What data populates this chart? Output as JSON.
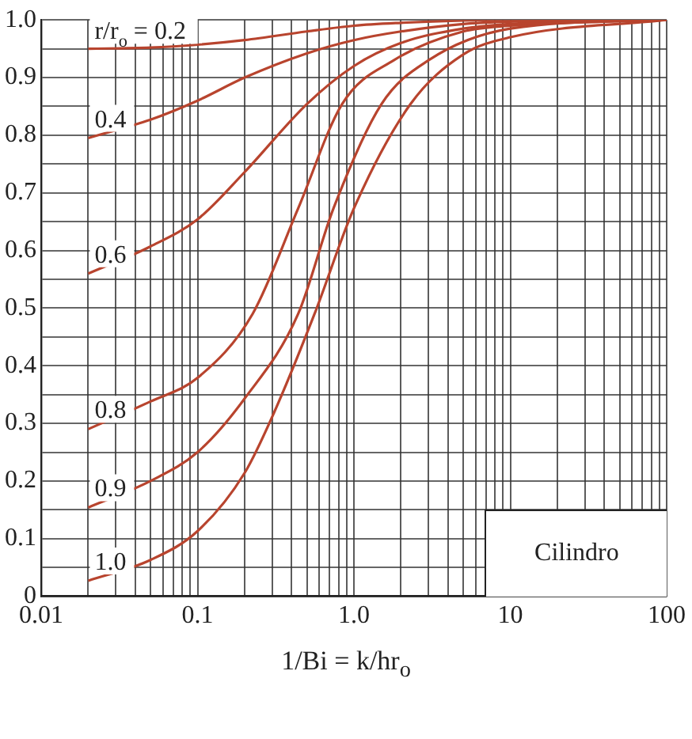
{
  "chart_data": {
    "type": "line",
    "xlabel": "1/Bi = k/hr$_{o}$",
    "log": "x",
    "grid": true,
    "legend": false,
    "xlim": [
      0.01,
      100
    ],
    "ylim": [
      0,
      1.0
    ],
    "xticks": [
      {
        "value": 0.01,
        "label": "0.01"
      },
      {
        "value": 0.02,
        "label": null
      },
      {
        "value": 0.03,
        "label": null
      },
      {
        "value": 0.04,
        "label": null
      },
      {
        "value": 0.05,
        "label": null
      },
      {
        "value": 0.06,
        "label": null
      },
      {
        "value": 0.07,
        "label": null
      },
      {
        "value": 0.08,
        "label": null
      },
      {
        "value": 0.09,
        "label": null
      },
      {
        "value": 0.1,
        "label": "0.1"
      },
      {
        "value": 0.2,
        "label": null
      },
      {
        "value": 0.3,
        "label": null
      },
      {
        "value": 0.4,
        "label": null
      },
      {
        "value": 0.5,
        "label": null
      },
      {
        "value": 0.6,
        "label": null
      },
      {
        "value": 0.7,
        "label": null
      },
      {
        "value": 0.8,
        "label": null
      },
      {
        "value": 0.9,
        "label": null
      },
      {
        "value": 1,
        "label": "1.0"
      },
      {
        "value": 2,
        "label": null
      },
      {
        "value": 3,
        "label": null
      },
      {
        "value": 4,
        "label": null
      },
      {
        "value": 5,
        "label": null
      },
      {
        "value": 6,
        "label": null
      },
      {
        "value": 7,
        "label": null
      },
      {
        "value": 8,
        "label": null
      },
      {
        "value": 9,
        "label": null
      },
      10,
      {
        "value": 20,
        "label": null
      },
      {
        "value": 30,
        "label": null
      },
      {
        "value": 40,
        "label": null
      },
      {
        "value": 50,
        "label": null
      },
      {
        "value": 60,
        "label": null
      },
      {
        "value": 70,
        "label": null
      },
      {
        "value": 80,
        "label": null
      },
      {
        "value": 90,
        "label": null
      },
      100
    ],
    "yticks": [
      0,
      {
        "value": 0.05,
        "label": null
      },
      0.1,
      {
        "value": 0.15,
        "label": null
      },
      0.2,
      {
        "value": 0.25,
        "label": null
      },
      0.3,
      {
        "value": 0.35,
        "label": null
      },
      0.4,
      {
        "value": 0.45,
        "label": null
      },
      0.5,
      {
        "value": 0.55,
        "label": null
      },
      0.6,
      {
        "value": 0.65,
        "label": null
      },
      0.7,
      {
        "value": 0.75,
        "label": null
      },
      0.8,
      {
        "value": 0.85,
        "label": null
      },
      0.9,
      {
        "value": 0.95,
        "label": null
      },
      {
        "value": 1.0,
        "label": "1.0"
      }
    ],
    "annotations": [
      "Cilindro"
    ],
    "series": [
      {
        "name": "r/r$_{o}$ = 0.2",
        "color": "#b8442e",
        "x": [
          0.02,
          0.05,
          0.1,
          0.2,
          0.5,
          1,
          2,
          5,
          10,
          100
        ],
        "values": [
          0.95,
          0.952,
          0.957,
          0.965,
          0.98,
          0.99,
          0.995,
          0.999,
          1.0,
          1.0
        ]
      },
      {
        "name": "0.4",
        "color": "#b8442e",
        "x": [
          0.02,
          0.05,
          0.1,
          0.2,
          0.5,
          1,
          2,
          5,
          10,
          100
        ],
        "values": [
          0.795,
          0.827,
          0.86,
          0.9,
          0.942,
          0.965,
          0.98,
          0.993,
          0.997,
          1.0
        ]
      },
      {
        "name": "0.6",
        "color": "#b8442e",
        "x": [
          0.02,
          0.05,
          0.1,
          0.2,
          0.5,
          1,
          2,
          5,
          10,
          100
        ],
        "values": [
          0.56,
          0.607,
          0.654,
          0.736,
          0.854,
          0.92,
          0.96,
          0.985,
          0.993,
          1.0
        ]
      },
      {
        "name": "0.8",
        "color": "#b8442e",
        "x": [
          0.02,
          0.05,
          0.1,
          0.225,
          0.44,
          0.84,
          1.8,
          5,
          10,
          100
        ],
        "values": [
          0.29,
          0.338,
          0.379,
          0.49,
          0.673,
          0.854,
          0.93,
          0.98,
          0.99,
          1.0
        ]
      },
      {
        "name": "0.9",
        "color": "#b8442e",
        "x": [
          0.02,
          0.05,
          0.1,
          0.2,
          0.44,
          0.74,
          1.5,
          3,
          10,
          100
        ],
        "values": [
          0.154,
          0.2,
          0.25,
          0.343,
          0.49,
          0.673,
          0.854,
          0.93,
          0.985,
          1.0
        ]
      },
      {
        "name": "1.0",
        "color": "#b8442e",
        "x": [
          0.02,
          0.05,
          0.1,
          0.2,
          0.31,
          0.56,
          1.0,
          2.3,
          5,
          10,
          100
        ],
        "values": [
          0.027,
          0.063,
          0.113,
          0.214,
          0.32,
          0.49,
          0.673,
          0.854,
          0.94,
          0.97,
          1.0
        ]
      }
    ]
  }
}
